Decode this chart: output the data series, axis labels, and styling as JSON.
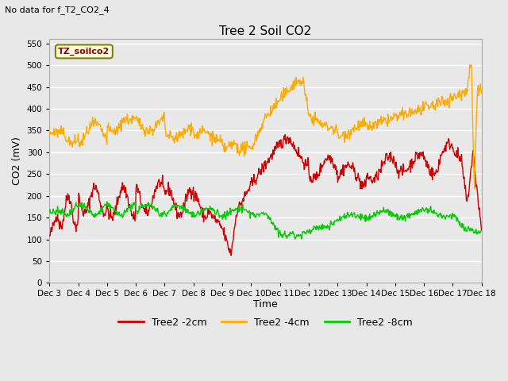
{
  "title": "Tree 2 Soil CO2",
  "subtitle": "No data for f_T2_CO2_4",
  "ylabel": "CO2 (mV)",
  "xlabel": "Time",
  "box_label": "TZ_soilco2",
  "xlim": [
    0,
    15
  ],
  "ylim": [
    0,
    560
  ],
  "yticks": [
    0,
    50,
    100,
    150,
    200,
    250,
    300,
    350,
    400,
    450,
    500,
    550
  ],
  "xtick_labels": [
    "Dec 3",
    "Dec 4",
    "Dec 5",
    "Dec 6",
    "Dec 7",
    "Dec 8",
    "Dec 9",
    "Dec 10",
    "Dec 11",
    "Dec 12",
    "Dec 13",
    "Dec 14",
    "Dec 15",
    "Dec 16",
    "Dec 17",
    "Dec 18"
  ],
  "legend_labels": [
    "Tree2 -2cm",
    "Tree2 -4cm",
    "Tree2 -8cm"
  ],
  "colors": {
    "red": "#cc0000",
    "orange": "#ffaa00",
    "green": "#00cc00"
  },
  "fig_bg_color": "#e8e8e8",
  "plot_bg_color": "#e8e8e8",
  "grid_color": "#ffffff",
  "line_width": 1.0,
  "fig_width": 6.4,
  "fig_height": 4.8,
  "dpi": 100
}
